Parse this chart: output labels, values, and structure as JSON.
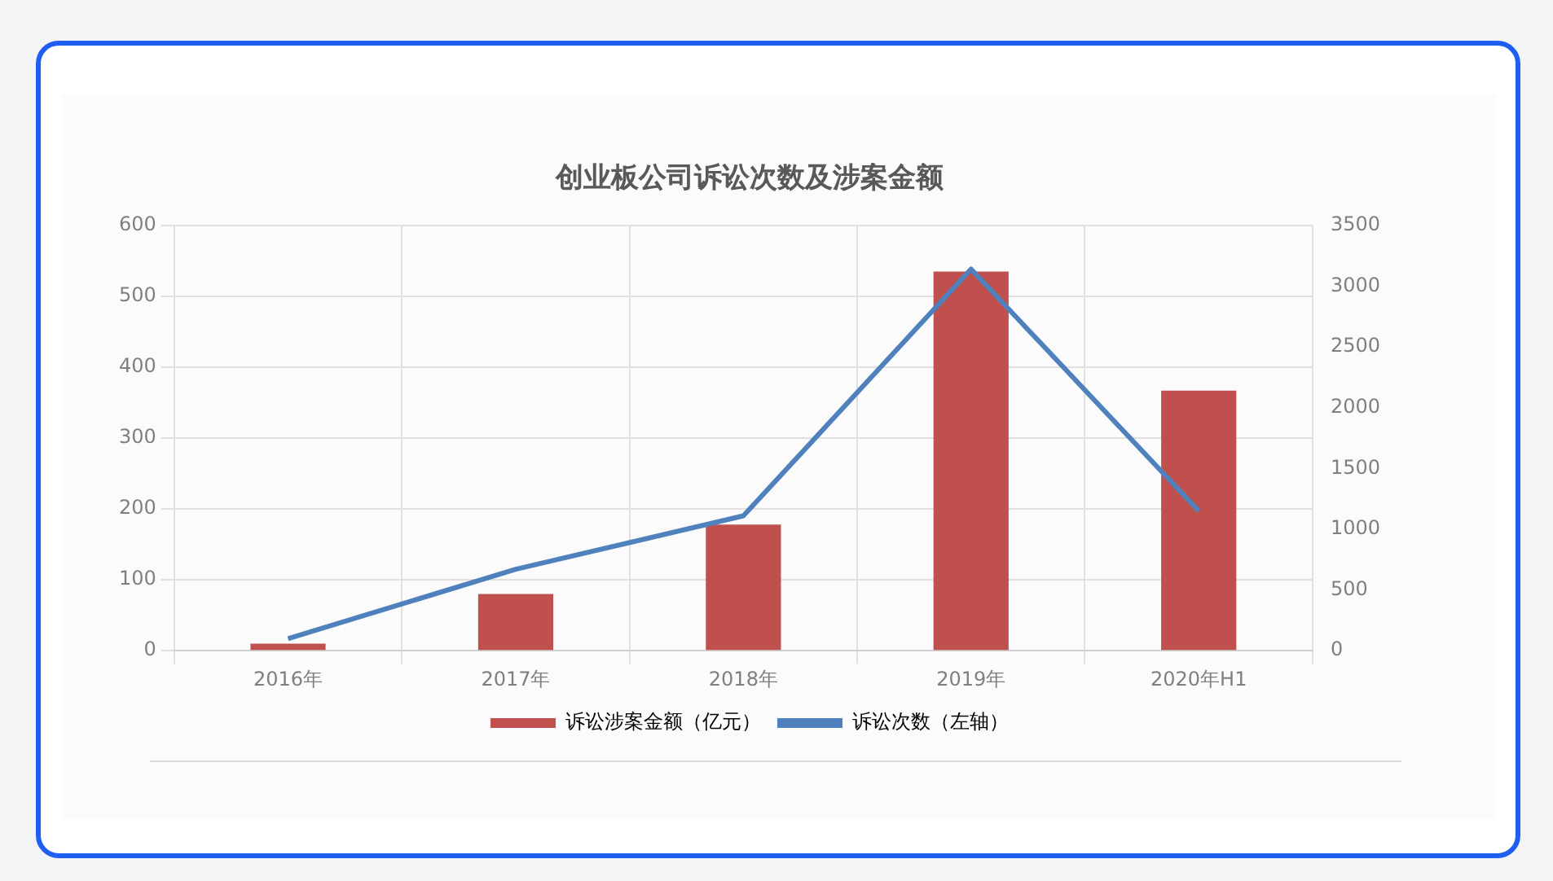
{
  "chart_data": {
    "type": "bar",
    "title": "创业板公司诉讼次数及涉案金额",
    "categories": [
      "2016年",
      "2017年",
      "2018年",
      "2019年",
      "2020年H1"
    ],
    "series": [
      {
        "name": "诉讼涉案金额（亿元）",
        "color": "#c0504d",
        "values": [
          10,
          80,
          178,
          535,
          367
        ]
      },
      {
        "name": "诉讼次数（左轴）",
        "type": "line",
        "axis": "y2",
        "color": "#4f81bd",
        "values": [
          100,
          670,
          1110,
          3140,
          1150
        ]
      }
    ],
    "ylim": [
      0,
      600
    ],
    "yticks": [
      0,
      100,
      200,
      300,
      400,
      500,
      600
    ],
    "y2lim": [
      0,
      3500
    ],
    "y2ticks": [
      0,
      500,
      1000,
      1500,
      2000,
      2500,
      3000,
      3500
    ],
    "grid": true,
    "legend": "bottom",
    "marker": "none"
  }
}
